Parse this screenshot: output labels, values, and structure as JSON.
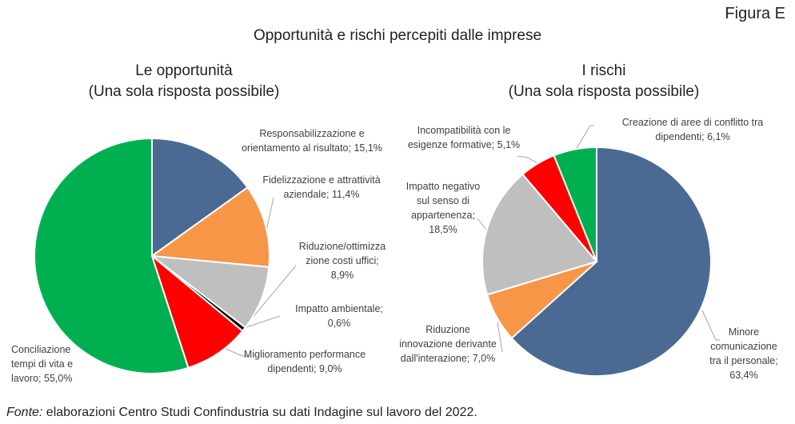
{
  "figure_label": "Figura E",
  "title": "Opportunità e rischi percepiti dalle imprese",
  "source": {
    "prefix": "Fonte:",
    "text": " elaborazioni Centro Studi Confindustria su dati Indagine sul lavoro del 2022."
  },
  "chart_data": [
    {
      "type": "pie",
      "title": "Le opportunità",
      "subtitle": "(Una sola risposta possibile)",
      "unit": "%",
      "slices": [
        {
          "label": "Responsabilizzazione e\norientamento al risultato; 15,1%",
          "value": 15.1,
          "color": "#4A6A94"
        },
        {
          "label": "Fidelizzazione e attrattività\naziendale; 11,4%",
          "value": 11.4,
          "color": "#F79646"
        },
        {
          "label": "Riduzione/ottimizza\nzione costi uffici;\n8,9%",
          "value": 8.9,
          "color": "#BFBFBF"
        },
        {
          "label": "Impatto ambientale;\n0,6%",
          "value": 0.6,
          "color": "#000000"
        },
        {
          "label": "Miglioramento performance\ndipendenti; 9,0%",
          "value": 9.0,
          "color": "#FF0000"
        },
        {
          "label": "Conciliazione\ntempi di vita e\nlavoro; 55,0%",
          "value": 55.0,
          "color": "#00B050"
        }
      ]
    },
    {
      "type": "pie",
      "title": "I rischi",
      "subtitle": "(Una sola risposta possibile)",
      "unit": "%",
      "slices": [
        {
          "label": "Minore\ncomunicazione\ntra il personale;\n63,4%",
          "value": 63.4,
          "color": "#4A6A94"
        },
        {
          "label": "Riduzione\ninnovazione derivante\ndall'interazione; 7,0%",
          "value": 7.0,
          "color": "#F79646"
        },
        {
          "label": "Impatto negativo\nsul senso di\nappartenenza;\n18,5%",
          "value": 18.5,
          "color": "#BFBFBF"
        },
        {
          "label": "Incompatibilità con le\nesigenze formative; 5,1%",
          "value": 5.1,
          "color": "#FF0000"
        },
        {
          "label": "Creazione di aree di conflitto tra\ndipendenti; 6,1%",
          "value": 6.1,
          "color": "#00B050"
        }
      ]
    }
  ]
}
